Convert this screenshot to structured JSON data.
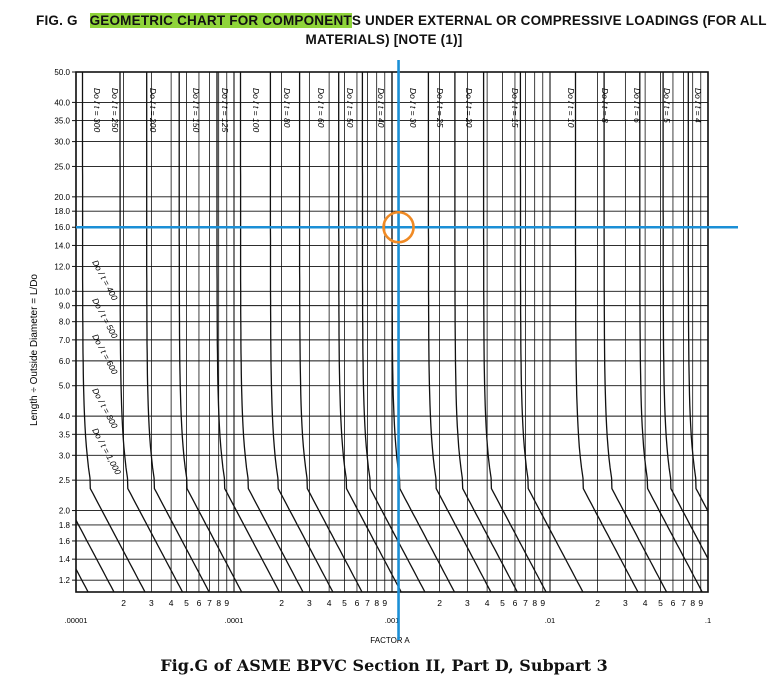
{
  "title": {
    "fig_label": "FIG. G",
    "highlighted": "GEOMETRIC CHART FOR COMPONENT",
    "rest_line1": "S UNDER EXTERNAL OR COMPRESSIVE LOADINGS (FOR ALL",
    "line2": "MATERIALS) [NOTE (1)]",
    "highlight_color": "#8fd43a"
  },
  "caption": "Fig.G of ASME BPVC Section II, Part D, Subpart 3",
  "colors": {
    "crosshair": "#1b8fd6",
    "marker": "#f08a24",
    "curves": "#111111"
  },
  "chart_data": {
    "type": "line",
    "title": "GEOMETRIC CHART FOR COMPONENTS UNDER EXTERNAL OR COMPRESSIVE LOADINGS (FOR ALL MATERIALS) [NOTE (1)]",
    "xlabel": "FACTOR A",
    "ylabel": "Length ÷ Outside Diameter = L/Do",
    "x_scale": "log",
    "y_scale": "log",
    "xlim": [
      1e-05,
      0.1
    ],
    "ylim": [
      1.1,
      50
    ],
    "grid": true,
    "x_decade_labels": [
      ".00001",
      ".0001",
      ".001",
      ".01",
      ".1"
    ],
    "x_minor_labels": [
      "2",
      "3",
      "4",
      "5",
      "6",
      "7",
      "8",
      "9"
    ],
    "y_ticks": [
      1.2,
      1.4,
      1.6,
      1.8,
      2.0,
      2.5,
      3.0,
      3.5,
      4.0,
      5.0,
      6.0,
      7.0,
      8.0,
      9.0,
      10.0,
      12.0,
      14.0,
      16.0,
      18.0,
      20.0,
      25.0,
      30.0,
      35.0,
      40.0,
      50.0
    ],
    "y_tick_labels": [
      "1.2",
      "1.4",
      "1.6",
      "1.8",
      "2.0",
      "2.5",
      "3.0",
      "3.5",
      "4.0",
      "5.0",
      "6.0",
      "7.0",
      "8.0",
      "9.0",
      "10.0",
      "12.0",
      "14.0",
      "16.0",
      "18.0",
      "20.0",
      "25.0",
      "30.0",
      "35.0",
      "40.0",
      "50.0"
    ],
    "series": [
      {
        "name": "Do/t = 4",
        "label": "Do / t = 4",
        "a_asym": 0.075
      },
      {
        "name": "Do/t = 5",
        "label": "Do / t = 5",
        "a_asym": 0.052
      },
      {
        "name": "Do/t = 6",
        "label": "Do / t = 6",
        "a_asym": 0.037
      },
      {
        "name": "Do/t = 8",
        "label": "Do / t = 8",
        "a_asym": 0.022
      },
      {
        "name": "Do/t = 10",
        "label": "Do / t = 10",
        "a_asym": 0.0145
      },
      {
        "name": "Do/t = 15",
        "label": "Do / t = 15",
        "a_asym": 0.0065
      },
      {
        "name": "Do/t = 20",
        "label": "Do / t = 20",
        "a_asym": 0.0038
      },
      {
        "name": "Do/t = 25",
        "label": "Do / t = 25",
        "a_asym": 0.0025
      },
      {
        "name": "Do/t = 30",
        "label": "Do / t = 30",
        "a_asym": 0.0017
      },
      {
        "name": "Do/t = 40",
        "label": "Do / t = 40",
        "a_asym": 0.001
      },
      {
        "name": "Do/t = 50",
        "label": "Do / t = 50",
        "a_asym": 0.00065
      },
      {
        "name": "Do/t = 60",
        "label": "Do / t = 60",
        "a_asym": 0.00046
      },
      {
        "name": "Do/t = 80",
        "label": "Do / t = 80",
        "a_asym": 0.00026
      },
      {
        "name": "Do/t = 100",
        "label": "Do / t = 100",
        "a_asym": 0.00017
      },
      {
        "name": "Do/t = 125",
        "label": "Do / t = 125",
        "a_asym": 0.00011
      },
      {
        "name": "Do/t = 150",
        "label": "Do / t = 150",
        "a_asym": 7.8e-05
      },
      {
        "name": "Do/t = 200",
        "label": "Do / t = 200",
        "a_asym": 4.5e-05
      },
      {
        "name": "Do/t = 250",
        "label": "Do / t = 250",
        "a_asym": 2.8e-05
      },
      {
        "name": "Do/t = 300",
        "label": "Do / t = 300",
        "a_asym": 1.9e-05
      },
      {
        "name": "Do/t = 400",
        "label": "Do / t = 400",
        "a_asym": 1.1e-05
      },
      {
        "name": "Do/t = 500",
        "label": "Do / t = 500",
        "a_asym": 7e-06
      },
      {
        "name": "Do/t = 600",
        "label": "Do / t = 600",
        "a_asym": 4.8e-06
      },
      {
        "name": "Do/t = 800",
        "label": "Do / t = 800",
        "a_asym": 2.7e-06
      },
      {
        "name": "Do/t = 1,000",
        "label": "Do / t = 1,000",
        "a_asym": 1.7e-06
      }
    ],
    "annotations": [
      {
        "type": "crosshair",
        "x": 0.0011,
        "y": 16.0
      }
    ]
  }
}
